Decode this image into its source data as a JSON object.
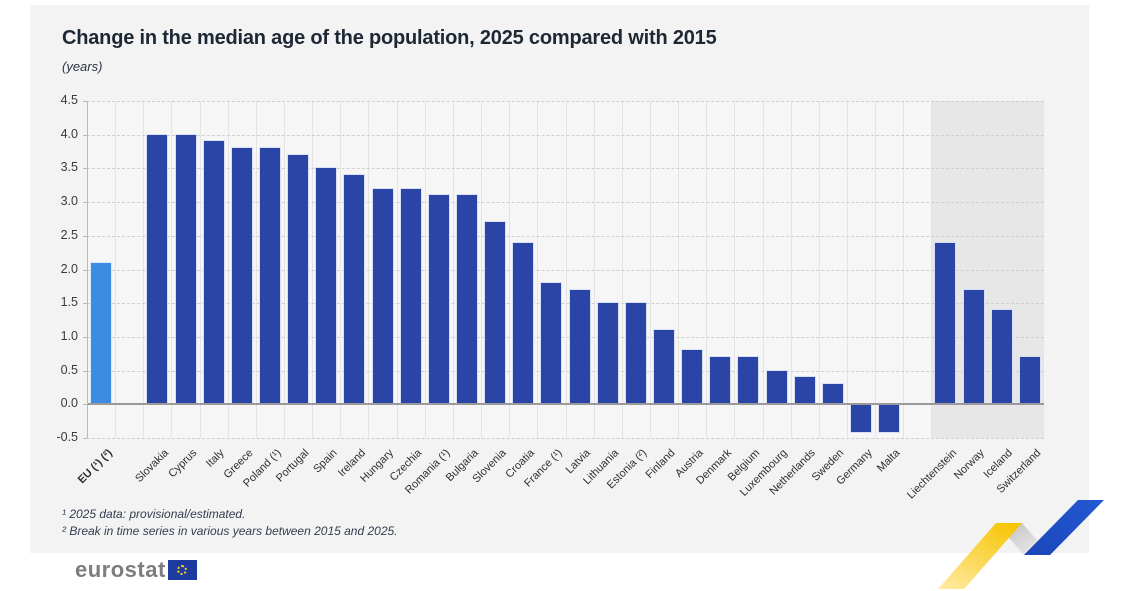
{
  "header": {
    "title": "Change in the median age of the population, 2025 compared with 2015",
    "subtitle": "(years)"
  },
  "chart_data": {
    "type": "bar",
    "title": "Change in the median age of the population, 2025 compared with 2015",
    "unit_label": "(years)",
    "ylim": [
      -0.5,
      4.5
    ],
    "ytick_step": 0.5,
    "ytick_labels": [
      "4.5",
      "4.0",
      "3.5",
      "3.0",
      "2.5",
      "2.0",
      "1.5",
      "1.0",
      "0.5",
      "0.0",
      "-0.5"
    ],
    "grid": "horizontal dashed gridlines, vertical category separators, EFTA group on shaded band",
    "legend": "none",
    "colors": {
      "eu_bar": "#3d8ce4",
      "member_bar": "#2a45a6",
      "efta_band": "#e7e7e7"
    },
    "bars": [
      {
        "label": "EU (¹) (²)",
        "value": 2.1,
        "style": "eu",
        "bold": true
      },
      null,
      {
        "label": "Slovakia",
        "value": 4.0
      },
      {
        "label": "Cyprus",
        "value": 4.0
      },
      {
        "label": "Italy",
        "value": 3.9
      },
      {
        "label": "Greece",
        "value": 3.8
      },
      {
        "label": "Poland (¹)",
        "value": 3.8
      },
      {
        "label": "Portugal",
        "value": 3.7
      },
      {
        "label": "Spain",
        "value": 3.5
      },
      {
        "label": "Ireland",
        "value": 3.4
      },
      {
        "label": "Hungary",
        "value": 3.2
      },
      {
        "label": "Czechia",
        "value": 3.2
      },
      {
        "label": "Romania (¹)",
        "value": 3.1
      },
      {
        "label": "Bulgaria",
        "value": 3.1
      },
      {
        "label": "Slovenia",
        "value": 2.7
      },
      {
        "label": "Croatia",
        "value": 2.4
      },
      {
        "label": "France (¹)",
        "value": 1.8
      },
      {
        "label": "Latvia",
        "value": 1.7
      },
      {
        "label": "Lithuania",
        "value": 1.5
      },
      {
        "label": "Estonia (²)",
        "value": 1.5
      },
      {
        "label": "Finland",
        "value": 1.1
      },
      {
        "label": "Austria",
        "value": 0.8
      },
      {
        "label": "Denmark",
        "value": 0.7
      },
      {
        "label": "Belgium",
        "value": 0.7
      },
      {
        "label": "Luxembourg",
        "value": 0.5
      },
      {
        "label": "Netherlands",
        "value": 0.4
      },
      {
        "label": "Sweden",
        "value": 0.3
      },
      {
        "label": "Germany",
        "value": -0.4
      },
      {
        "label": "Malta",
        "value": -0.4
      },
      null,
      {
        "label": "Liechtenstein",
        "value": 2.4,
        "band": true
      },
      {
        "label": "Norway",
        "value": 1.7,
        "band": true
      },
      {
        "label": "Iceland",
        "value": 1.4,
        "band": true
      },
      {
        "label": "Switzerland",
        "value": 0.7,
        "band": true
      }
    ]
  },
  "footnotes": [
    "¹ 2025 data: provisional/estimated.",
    "² Break in time series in various years between 2015 and 2025."
  ],
  "logo": {
    "text": "eurostat"
  }
}
